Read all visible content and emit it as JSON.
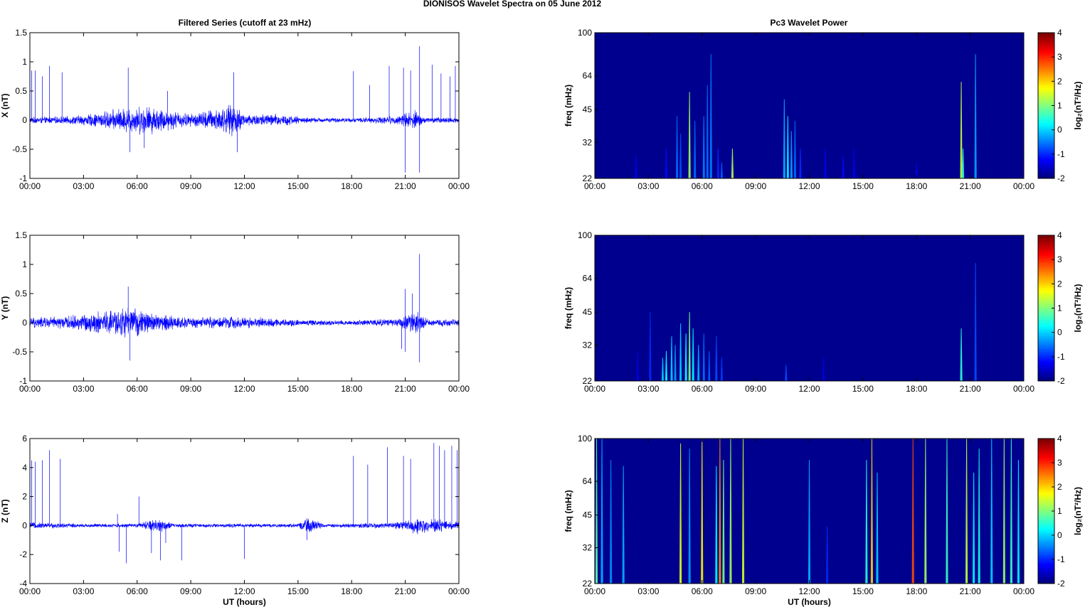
{
  "figure": {
    "title": "DIONISOS Wavelet Spectra on 05 June      2012",
    "left_column_title": "Filtered Series (cutoff at 23 mHz)",
    "right_column_title": "Pc3 Wavelet Power",
    "xlabel": "UT (hours)"
  },
  "colors": {
    "trace": "#0000ff",
    "spectrum_background": "#00008f",
    "axes": "#000000"
  },
  "chart_data": [
    {
      "type": "line",
      "name": "x-filtered-series",
      "ylabel": "X (nT)",
      "ylim": [
        -1,
        1.5
      ],
      "yticks": [
        -1,
        -0.5,
        0,
        0.5,
        1,
        1.5
      ],
      "xlim_hours": [
        0,
        24
      ],
      "xticks": [
        "00:00",
        "03:00",
        "06:00",
        "09:00",
        "12:00",
        "15:00",
        "18:00",
        "21:00",
        "00:00"
      ],
      "envelope": [
        {
          "t": 0,
          "amp": 0.06
        },
        {
          "t": 2,
          "amp": 0.07
        },
        {
          "t": 3.5,
          "amp": 0.12
        },
        {
          "t": 5,
          "amp": 0.22
        },
        {
          "t": 6.5,
          "amp": 0.28
        },
        {
          "t": 8,
          "amp": 0.18
        },
        {
          "t": 9,
          "amp": 0.12
        },
        {
          "t": 10,
          "amp": 0.2
        },
        {
          "t": 11.5,
          "amp": 0.3
        },
        {
          "t": 12,
          "amp": 0.12
        },
        {
          "t": 14,
          "amp": 0.12
        },
        {
          "t": 15.5,
          "amp": 0.05
        },
        {
          "t": 18,
          "amp": 0.04
        },
        {
          "t": 20.5,
          "amp": 0.08
        },
        {
          "t": 21.5,
          "amp": 0.2
        },
        {
          "t": 22,
          "amp": 0.06
        },
        {
          "t": 24,
          "amp": 0.05
        }
      ],
      "spikes": [
        {
          "t": 0.1,
          "v": 0.85
        },
        {
          "t": 0.3,
          "v": 0.85
        },
        {
          "t": 0.7,
          "v": 0.75
        },
        {
          "t": 1.1,
          "v": 0.93
        },
        {
          "t": 1.8,
          "v": 0.82
        },
        {
          "t": 5.5,
          "v": 0.9
        },
        {
          "t": 5.6,
          "v": -0.55
        },
        {
          "t": 6.4,
          "v": -0.48
        },
        {
          "t": 7.7,
          "v": 0.5
        },
        {
          "t": 11.4,
          "v": 0.82
        },
        {
          "t": 11.6,
          "v": -0.55
        },
        {
          "t": 18.1,
          "v": 0.84
        },
        {
          "t": 19.0,
          "v": 0.6
        },
        {
          "t": 20.1,
          "v": 0.93
        },
        {
          "t": 20.9,
          "v": 0.9
        },
        {
          "t": 21.0,
          "v": -0.9
        },
        {
          "t": 21.3,
          "v": 0.85
        },
        {
          "t": 21.8,
          "v": 1.27
        },
        {
          "t": 21.8,
          "v": -0.9
        },
        {
          "t": 22.5,
          "v": 0.95
        },
        {
          "t": 23.0,
          "v": 0.8
        },
        {
          "t": 23.5,
          "v": 0.75
        },
        {
          "t": 23.8,
          "v": 0.93
        }
      ]
    },
    {
      "type": "line",
      "name": "y-filtered-series",
      "ylabel": "Y (nT)",
      "ylim": [
        -1,
        1.5
      ],
      "yticks": [
        -1,
        -0.5,
        0,
        0.5,
        1,
        1.5
      ],
      "xlim_hours": [
        0,
        24
      ],
      "xticks": [
        "00:00",
        "03:00",
        "06:00",
        "09:00",
        "12:00",
        "15:00",
        "18:00",
        "21:00",
        "00:00"
      ],
      "envelope": [
        {
          "t": 0,
          "amp": 0.1
        },
        {
          "t": 2,
          "amp": 0.12
        },
        {
          "t": 4,
          "amp": 0.22
        },
        {
          "t": 5.5,
          "amp": 0.3
        },
        {
          "t": 7,
          "amp": 0.18
        },
        {
          "t": 9,
          "amp": 0.1
        },
        {
          "t": 11,
          "amp": 0.12
        },
        {
          "t": 13,
          "amp": 0.1
        },
        {
          "t": 15,
          "amp": 0.06
        },
        {
          "t": 18,
          "amp": 0.05
        },
        {
          "t": 20.5,
          "amp": 0.08
        },
        {
          "t": 21.7,
          "amp": 0.22
        },
        {
          "t": 22.2,
          "amp": 0.07
        },
        {
          "t": 24,
          "amp": 0.06
        }
      ],
      "spikes": [
        {
          "t": 5.5,
          "v": 0.62
        },
        {
          "t": 5.6,
          "v": -0.65
        },
        {
          "t": 21.0,
          "v": 0.58
        },
        {
          "t": 21.0,
          "v": -0.5
        },
        {
          "t": 21.4,
          "v": 0.5
        },
        {
          "t": 21.8,
          "v": 1.18
        },
        {
          "t": 21.8,
          "v": -0.68
        },
        {
          "t": 20.8,
          "v": -0.45
        }
      ]
    },
    {
      "type": "line",
      "name": "z-filtered-series",
      "ylabel": "Z (nT)",
      "ylim": [
        -4,
        6
      ],
      "yticks": [
        -4,
        -2,
        0,
        2,
        4,
        6
      ],
      "xlim_hours": [
        0,
        24
      ],
      "xticks": [
        "00:00",
        "03:00",
        "06:00",
        "09:00",
        "12:00",
        "15:00",
        "18:00",
        "21:00",
        "00:00"
      ],
      "envelope": [
        {
          "t": 0,
          "amp": 0.25
        },
        {
          "t": 3,
          "amp": 0.15
        },
        {
          "t": 6,
          "amp": 0.15
        },
        {
          "t": 7.2,
          "amp": 0.6
        },
        {
          "t": 8,
          "amp": 0.15
        },
        {
          "t": 15,
          "amp": 0.15
        },
        {
          "t": 15.6,
          "amp": 0.6
        },
        {
          "t": 16.5,
          "amp": 0.12
        },
        {
          "t": 20.5,
          "amp": 0.25
        },
        {
          "t": 21.7,
          "amp": 0.7
        },
        {
          "t": 24,
          "amp": 0.3
        }
      ],
      "spikes": [
        {
          "t": 0.1,
          "v": 4.5
        },
        {
          "t": 0.3,
          "v": 4.4
        },
        {
          "t": 0.7,
          "v": 4.5
        },
        {
          "t": 1.1,
          "v": 5.2
        },
        {
          "t": 1.7,
          "v": 4.6
        },
        {
          "t": 4.9,
          "v": 0.8
        },
        {
          "t": 5.0,
          "v": -1.8
        },
        {
          "t": 5.4,
          "v": -2.6
        },
        {
          "t": 6.1,
          "v": 2.0
        },
        {
          "t": 6.8,
          "v": -1.9
        },
        {
          "t": 7.3,
          "v": -2.4
        },
        {
          "t": 7.6,
          "v": -1.2
        },
        {
          "t": 8.5,
          "v": -2.4
        },
        {
          "t": 12.0,
          "v": -2.3
        },
        {
          "t": 15.5,
          "v": -1.0
        },
        {
          "t": 18.1,
          "v": 4.8
        },
        {
          "t": 18.9,
          "v": 4.2
        },
        {
          "t": 20.0,
          "v": 5.4
        },
        {
          "t": 20.9,
          "v": 4.8
        },
        {
          "t": 21.3,
          "v": 4.6
        },
        {
          "t": 22.6,
          "v": 5.7
        },
        {
          "t": 22.9,
          "v": 5.5
        },
        {
          "t": 23.2,
          "v": 5.2
        },
        {
          "t": 23.6,
          "v": 5.5
        },
        {
          "t": 23.9,
          "v": 5.2
        }
      ]
    },
    {
      "type": "heatmap",
      "name": "x-wavelet-power",
      "ylabel": "freq (mHz)",
      "ylim": [
        22,
        100
      ],
      "yticks": [
        22,
        32,
        45,
        64,
        100
      ],
      "yscale": "log",
      "xlim_hours": [
        0,
        24
      ],
      "xticks": [
        "00:00",
        "03:00",
        "06:00",
        "09:00",
        "12:00",
        "15:00",
        "18:00",
        "21:00",
        "00:00"
      ],
      "colorbar": {
        "label": "log₂(nT²/Hz)",
        "range": [
          -2,
          4
        ],
        "ticks": [
          -2,
          -1,
          0,
          1,
          2,
          3,
          4
        ]
      },
      "streaks": [
        {
          "t": 2.3,
          "fmax": 28,
          "p": -1.3
        },
        {
          "t": 4.0,
          "fmax": 30,
          "p": -1.2
        },
        {
          "t": 4.6,
          "fmax": 42,
          "p": -0.6
        },
        {
          "t": 4.8,
          "fmax": 35,
          "p": -0.8
        },
        {
          "t": 5.3,
          "fmax": 54,
          "p": 1.2
        },
        {
          "t": 5.6,
          "fmax": 40,
          "p": -0.6
        },
        {
          "t": 6.1,
          "fmax": 42,
          "p": -0.5
        },
        {
          "t": 6.3,
          "fmax": 58,
          "p": -0.6
        },
        {
          "t": 6.5,
          "fmax": 80,
          "p": -0.5
        },
        {
          "t": 6.9,
          "fmax": 30,
          "p": -1.0
        },
        {
          "t": 7.1,
          "fmax": 26,
          "p": -0.7
        },
        {
          "t": 7.7,
          "fmax": 30,
          "p": 1.3
        },
        {
          "t": 10.6,
          "fmax": 50,
          "p": -0.2
        },
        {
          "t": 10.8,
          "fmax": 42,
          "p": 0.2
        },
        {
          "t": 11.0,
          "fmax": 36,
          "p": -0.3
        },
        {
          "t": 11.2,
          "fmax": 40,
          "p": -0.6
        },
        {
          "t": 11.5,
          "fmax": 30,
          "p": -1.0
        },
        {
          "t": 12.9,
          "fmax": 30,
          "p": -1.3
        },
        {
          "t": 13.9,
          "fmax": 28,
          "p": -1.2
        },
        {
          "t": 14.5,
          "fmax": 30,
          "p": -1.3
        },
        {
          "t": 18.0,
          "fmax": 26,
          "p": -1.4
        },
        {
          "t": 20.5,
          "fmax": 60,
          "p": 1.4
        },
        {
          "t": 20.6,
          "fmax": 30,
          "p": 0.5
        },
        {
          "t": 21.3,
          "fmax": 80,
          "p": -0.3
        }
      ]
    },
    {
      "type": "heatmap",
      "name": "y-wavelet-power",
      "ylabel": "freq (mHz)",
      "ylim": [
        22,
        100
      ],
      "yticks": [
        22,
        32,
        45,
        64,
        100
      ],
      "yscale": "log",
      "xlim_hours": [
        0,
        24
      ],
      "xticks": [
        "00:00",
        "03:00",
        "06:00",
        "09:00",
        "12:00",
        "15:00",
        "18:00",
        "21:00",
        "00:00"
      ],
      "colorbar": {
        "label": "log₂(nT²/Hz)",
        "range": [
          -2,
          4
        ],
        "ticks": [
          -2,
          -1,
          0,
          1,
          2,
          3,
          4
        ]
      },
      "streaks": [
        {
          "t": 2.4,
          "fmax": 30,
          "p": -1.4
        },
        {
          "t": 3.1,
          "fmax": 45,
          "p": -1.0
        },
        {
          "t": 3.8,
          "fmax": 28,
          "p": 0.0
        },
        {
          "t": 4.0,
          "fmax": 30,
          "p": 0.3
        },
        {
          "t": 4.3,
          "fmax": 35,
          "p": 0.0
        },
        {
          "t": 4.5,
          "fmax": 32,
          "p": -0.3
        },
        {
          "t": 4.8,
          "fmax": 40,
          "p": 0.0
        },
        {
          "t": 5.1,
          "fmax": 36,
          "p": 0.4
        },
        {
          "t": 5.3,
          "fmax": 45,
          "p": 1.0
        },
        {
          "t": 5.5,
          "fmax": 38,
          "p": 0.2
        },
        {
          "t": 5.8,
          "fmax": 32,
          "p": -0.2
        },
        {
          "t": 6.1,
          "fmax": 36,
          "p": -0.6
        },
        {
          "t": 6.4,
          "fmax": 30,
          "p": -0.7
        },
        {
          "t": 6.8,
          "fmax": 35,
          "p": -0.8
        },
        {
          "t": 7.1,
          "fmax": 28,
          "p": -0.9
        },
        {
          "t": 10.7,
          "fmax": 26,
          "p": -0.8
        },
        {
          "t": 12.8,
          "fmax": 28,
          "p": -1.4
        },
        {
          "t": 20.5,
          "fmax": 38,
          "p": 0.5
        },
        {
          "t": 21.3,
          "fmax": 75,
          "p": -0.8
        }
      ]
    },
    {
      "type": "heatmap",
      "name": "z-wavelet-power",
      "ylabel": "freq (mHz)",
      "ylim": [
        22,
        100
      ],
      "yticks": [
        22,
        32,
        45,
        64,
        100
      ],
      "yscale": "log",
      "xlim_hours": [
        0,
        24
      ],
      "xticks": [
        "00:00",
        "03:00",
        "06:00",
        "09:00",
        "12:00",
        "15:00",
        "18:00",
        "21:00",
        "00:00"
      ],
      "colorbar": {
        "label": "log₂(nT²/Hz)",
        "range": [
          -2,
          4
        ],
        "ticks": [
          -2,
          -1,
          0,
          1,
          2,
          3,
          4
        ]
      },
      "streaks": [
        {
          "t": 0.1,
          "fmax": 100,
          "p": 0.8
        },
        {
          "t": 0.4,
          "fmax": 100,
          "p": -0.2
        },
        {
          "t": 0.9,
          "fmax": 80,
          "p": -0.4
        },
        {
          "t": 1.6,
          "fmax": 75,
          "p": -0.2
        },
        {
          "t": 4.8,
          "fmax": 95,
          "p": 1.6
        },
        {
          "t": 5.3,
          "fmax": 90,
          "p": -0.3
        },
        {
          "t": 6.0,
          "fmax": 100,
          "p": 1.8
        },
        {
          "t": 6.8,
          "fmax": 75,
          "p": 0.3
        },
        {
          "t": 7.0,
          "fmax": 100,
          "p": 2.4
        },
        {
          "t": 7.2,
          "fmax": 80,
          "p": 1.0
        },
        {
          "t": 7.6,
          "fmax": 100,
          "p": 1.2
        },
        {
          "t": 8.3,
          "fmax": 100,
          "p": 1.5
        },
        {
          "t": 12.0,
          "fmax": 80,
          "p": -0.2
        },
        {
          "t": 13.0,
          "fmax": 40,
          "p": -1.0
        },
        {
          "t": 15.2,
          "fmax": 80,
          "p": 0.5
        },
        {
          "t": 15.5,
          "fmax": 100,
          "p": 2.0
        },
        {
          "t": 15.8,
          "fmax": 70,
          "p": 0.0
        },
        {
          "t": 17.8,
          "fmax": 100,
          "p": 2.8
        },
        {
          "t": 18.5,
          "fmax": 100,
          "p": 1.2
        },
        {
          "t": 19.7,
          "fmax": 100,
          "p": 0.6
        },
        {
          "t": 20.8,
          "fmax": 100,
          "p": 1.4
        },
        {
          "t": 21.2,
          "fmax": 70,
          "p": 0.2
        },
        {
          "t": 21.5,
          "fmax": 90,
          "p": 0.4
        },
        {
          "t": 22.2,
          "fmax": 100,
          "p": 0.0
        },
        {
          "t": 22.9,
          "fmax": 100,
          "p": 1.2
        },
        {
          "t": 23.3,
          "fmax": 100,
          "p": 0.6
        },
        {
          "t": 23.7,
          "fmax": 80,
          "p": 0.2
        }
      ]
    }
  ]
}
